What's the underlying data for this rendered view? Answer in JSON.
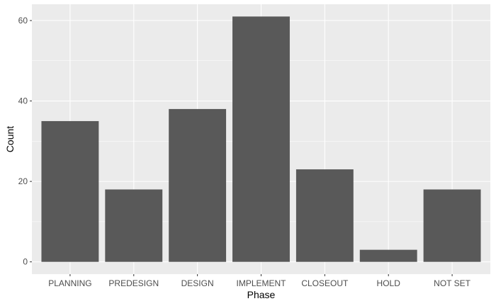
{
  "chart_data": {
    "type": "bar",
    "categories": [
      "PLANNING",
      "PREDESIGN",
      "DESIGN",
      "IMPLEMENT",
      "CLOSEOUT",
      "HOLD",
      "NOT SET"
    ],
    "values": [
      35,
      18,
      38,
      61,
      23,
      3,
      18
    ],
    "xlabel": "Phase",
    "ylabel": "Count",
    "ylim": [
      -3.05,
      64.05
    ],
    "yticks": [
      0,
      20,
      40,
      60
    ],
    "grid": true,
    "colors": {
      "panel": "#EBEBEB",
      "grid": "#FFFFFF",
      "bar": "#595959",
      "tick": "#333333",
      "text": "#4D4D4D"
    }
  }
}
